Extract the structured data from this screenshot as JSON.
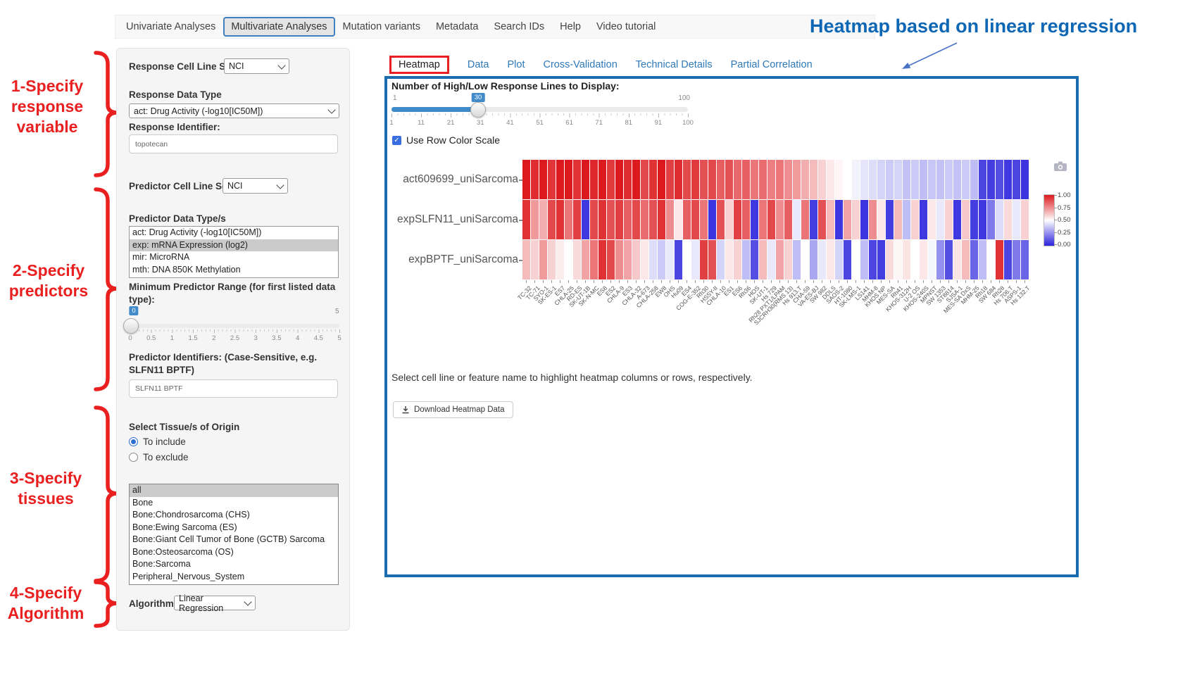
{
  "nav": {
    "items": [
      {
        "label": "Univariate Analyses",
        "active": false
      },
      {
        "label": "Multivariate Analyses",
        "active": true
      },
      {
        "label": "Mutation variants",
        "active": false
      },
      {
        "label": "Metadata",
        "active": false
      },
      {
        "label": "Search IDs",
        "active": false
      },
      {
        "label": "Help",
        "active": false
      },
      {
        "label": "Video tutorial",
        "active": false
      }
    ]
  },
  "annotation": {
    "heading": "Heatmap based on linear regression",
    "steps": [
      {
        "lines": [
          "1-Specify",
          "response",
          "variable"
        ]
      },
      {
        "lines": [
          "2-Specify",
          "predictors"
        ]
      },
      {
        "lines": [
          "3-Specify",
          "tissues"
        ]
      },
      {
        "lines": [
          "4-Specify",
          "Algorithm"
        ]
      }
    ],
    "accent_red": "#e9201f",
    "accent_blue": "#0e67b4"
  },
  "form": {
    "response_cell_line_set_label": "Response Cell Line Set",
    "response_cell_line_set_value": "NCI",
    "response_data_type_label": "Response Data Type",
    "response_data_type_value": "act: Drug Activity (-log10[IC50M])",
    "response_identifier_label": "Response Identifier:",
    "response_identifier_value": "topotecan",
    "predictor_cell_line_set_label": "Predictor Cell Line Set",
    "predictor_cell_line_set_value": "NCI",
    "predictor_data_types_label": "Predictor Data Type/s",
    "predictor_data_types": [
      {
        "label": "act: Drug Activity (-log10[IC50M])",
        "selected": false
      },
      {
        "label": "exp: mRNA Expression (log2)",
        "selected": true
      },
      {
        "label": "mir: MicroRNA",
        "selected": false
      },
      {
        "label": "mth: DNA 850K Methylation",
        "selected": false
      }
    ],
    "min_predictor_range_label": "Minimum Predictor Range (for first listed data type):",
    "min_range_slider": {
      "value": "0",
      "max_label": "5",
      "ticks": [
        "0",
        "0.5",
        "1",
        "1.5",
        "2",
        "2.5",
        "3",
        "3.5",
        "4",
        "4.5",
        "5"
      ]
    },
    "predictor_identifiers_label": "Predictor Identifiers: (Case-Sensitive, e.g. SLFN11 BPTF)",
    "predictor_identifiers_value": "SLFN11 BPTF",
    "tissue_section_label": "Select Tissue/s of Origin",
    "tissue_radios": [
      {
        "label": "To include",
        "selected": true
      },
      {
        "label": "To exclude",
        "selected": false
      }
    ],
    "tissues": [
      {
        "label": "all",
        "selected": true
      },
      {
        "label": "Bone",
        "selected": false
      },
      {
        "label": "Bone:Chondrosarcoma (CHS)",
        "selected": false
      },
      {
        "label": "Bone:Ewing Sarcoma (ES)",
        "selected": false
      },
      {
        "label": "Bone:Giant Cell Tumor of Bone (GCTB) Sarcoma",
        "selected": false
      },
      {
        "label": "Bone:Osteosarcoma (OS)",
        "selected": false
      },
      {
        "label": "Bone:Sarcoma",
        "selected": false
      },
      {
        "label": "Peripheral_Nervous_System",
        "selected": false
      }
    ],
    "algorithm_label": "Algorithm",
    "algorithm_value": "Linear Regression"
  },
  "panel": {
    "tabs": [
      {
        "label": "Heatmap",
        "active": true
      },
      {
        "label": "Data",
        "active": false
      },
      {
        "label": "Plot",
        "active": false
      },
      {
        "label": "Cross-Validation",
        "active": false
      },
      {
        "label": "Technical Details",
        "active": false
      },
      {
        "label": "Partial Correlation",
        "active": false
      }
    ],
    "display_slider_label": "Number of High/Low Response Lines to Display:",
    "display_slider": {
      "min_label": "1",
      "max_label": "100",
      "value": "30",
      "ticks": [
        "1",
        "11",
        "21",
        "31",
        "41",
        "51",
        "61",
        "71",
        "81",
        "91",
        "100"
      ]
    },
    "row_color_scale_label": "Use Row Color Scale",
    "hint": "Select cell line or feature name to highlight heatmap columns or rows, respectively.",
    "download_button_label": "Download Heatmap Data",
    "icons": {
      "camera": "camera-icon",
      "download": "download-icon",
      "checkbox": "checkmark-icon"
    }
  },
  "chart_data": {
    "type": "heatmap",
    "rows": [
      "act609699_uniSarcoma",
      "expSLFN11_uniSarcoma",
      "expBPTF_uniSarcoma"
    ],
    "columns": [
      "TC-32",
      "TC-71",
      "SYO-1",
      "SK-ES-1",
      "ES7",
      "CHLA-25",
      "RD-ES",
      "SK-UT-1B",
      "SK-N-MC",
      "ES8",
      "ES2",
      "CHLA-9",
      "ES3",
      "CHLA-32",
      "A-673",
      "CHLA-258",
      "EW8",
      "OHS",
      "Hu09",
      "ES4",
      "COG-E-352",
      "Rh30",
      "HSSY-II",
      "CHLA-10",
      "ES1",
      "ES6",
      "Rh36",
      "HOS",
      "SK-UT-1",
      "Hs 729",
      "Rh28 PXT1/LPAM",
      "SJCRH30(RMS 13)",
      "Hs 913.T",
      "CHA-59",
      "VA-ES-BJ",
      "SW 982",
      "DDLS",
      "SAOS-2",
      "HT-1080",
      "SK-LMS-1",
      "LS141",
      "MHM-8",
      "KHOS NP",
      "MES-SA",
      "Rh41",
      "KHOS-312H",
      "U-2 OS",
      "KHOS-240S",
      "MPNST",
      "SW 1353",
      "ST8814",
      "SJSA-1",
      "MES-SA DxS",
      "MHM-25",
      "Rh18",
      "SW 684",
      "Rh28",
      "Hs 706.T",
      "ASPS-1",
      "Hs 132.T"
    ],
    "values": [
      [
        1,
        0.96,
        1,
        0.94,
        1,
        1,
        0.95,
        1,
        0.97,
        1,
        0.93,
        1,
        0.96,
        1,
        0.9,
        0.95,
        1,
        0.92,
        0.96,
        0.9,
        0.93,
        0.88,
        0.9,
        0.85,
        0.88,
        0.83,
        0.85,
        0.8,
        0.82,
        0.78,
        0.8,
        0.75,
        0.72,
        0.68,
        0.65,
        0.6,
        0.55,
        0.52,
        0.5,
        0.47,
        0.44,
        0.42,
        0.4,
        0.38,
        0.4,
        0.36,
        0.38,
        0.35,
        0.37,
        0.36,
        0.38,
        0.36,
        0.38,
        0.35,
        0.08,
        0.06,
        0.1,
        0.05,
        0.08,
        0.04
      ],
      [
        0.95,
        0.72,
        0.68,
        0.9,
        0.95,
        0.8,
        0.92,
        0.05,
        0.9,
        0.95,
        0.88,
        0.92,
        0.85,
        0.9,
        0.82,
        0.88,
        0.95,
        0.75,
        0.55,
        0.85,
        0.9,
        0.8,
        0.04,
        0.88,
        0.6,
        0.92,
        0.85,
        0.05,
        0.8,
        0.9,
        0.75,
        0.85,
        0.45,
        0.8,
        0.06,
        0.88,
        0.65,
        0.05,
        0.7,
        0.6,
        0.04,
        0.75,
        0.55,
        0.06,
        0.65,
        0.35,
        0.6,
        0.05,
        0.55,
        0.45,
        0.6,
        0.05,
        0.62,
        0.06,
        0.05,
        0.2,
        0.42,
        0.58,
        0.45,
        0.6
      ],
      [
        0.65,
        0.6,
        0.72,
        0.6,
        0.54,
        0.5,
        0.58,
        0.7,
        0.8,
        0.95,
        0.9,
        0.75,
        0.7,
        0.62,
        0.55,
        0.42,
        0.38,
        0.45,
        0.08,
        0.5,
        0.45,
        0.92,
        0.88,
        0.4,
        0.55,
        0.6,
        0.35,
        0.1,
        0.65,
        0.45,
        0.7,
        0.6,
        0.35,
        0.5,
        0.3,
        0.45,
        0.55,
        0.4,
        0.08,
        0.5,
        0.35,
        0.08,
        0.06,
        0.58,
        0.52,
        0.56,
        0.5,
        0.55,
        0.48,
        0.25,
        0.1,
        0.56,
        0.65,
        0.15,
        0.35,
        0.5,
        0.95,
        0.08,
        0.2,
        0.15
      ]
    ],
    "value_range": [
      0,
      1
    ],
    "colorbar": {
      "ticks": [
        "1.00",
        "0.75",
        "0.50",
        "0.25",
        "0.00"
      ],
      "high_color": "#dc1a1e",
      "mid_color": "#ffffff",
      "low_color": "#2a22dc"
    },
    "xlabel_rotation": -45,
    "legend_position": "right"
  }
}
